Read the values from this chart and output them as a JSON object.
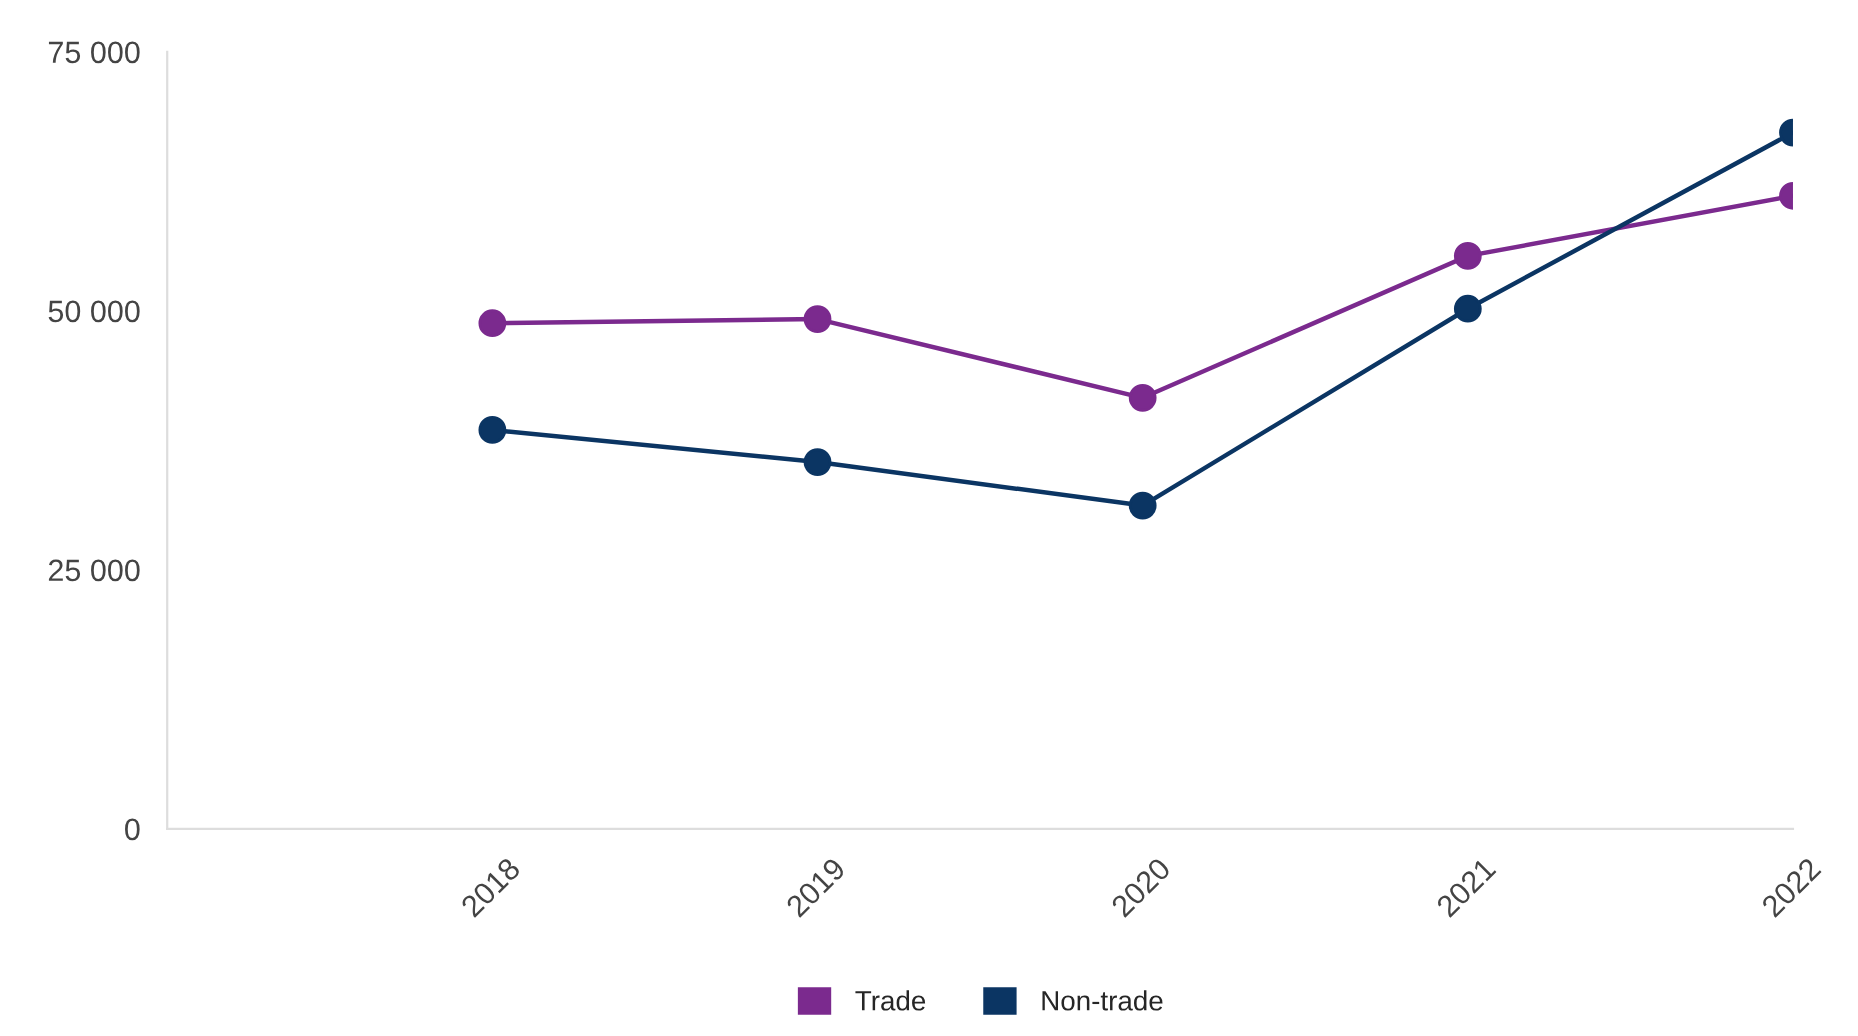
{
  "chart_data": {
    "type": "line",
    "x": [
      2018,
      2019,
      2020,
      2021,
      2022
    ],
    "series": [
      {
        "name": "Trade",
        "color": "#7b2a8e",
        "values": [
          48800,
          49200,
          41600,
          55300,
          61100
        ]
      },
      {
        "name": "Non-trade",
        "color": "#0b3563",
        "values": [
          38500,
          35400,
          31200,
          50200,
          67200
        ]
      }
    ],
    "xlim": [
      2017,
      2022
    ],
    "xticks": [
      {
        "value": 2017,
        "label": null
      },
      2018,
      2019,
      2020,
      2021,
      2022
    ],
    "ylim": [
      0,
      75000
    ],
    "yticks": [
      {
        "value": 0,
        "label": "0"
      },
      {
        "value": 25000,
        "label": "25 000"
      },
      {
        "value": 50000,
        "label": "50 000"
      },
      {
        "value": 75000,
        "label": "75 000"
      }
    ],
    "grid": false,
    "legend": "bottom",
    "marker": "circle",
    "line_style": "solid"
  }
}
